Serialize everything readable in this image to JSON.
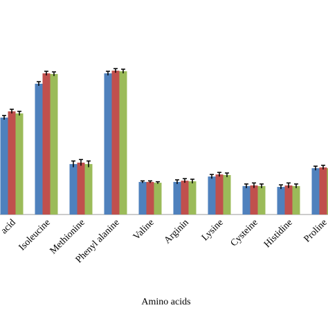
{
  "chart_data": {
    "type": "bar",
    "x_label": "Amino acids",
    "categories": [
      "acid",
      "Isoleucine",
      "Methionine",
      "Phenyl alanine",
      "Valine",
      "Arginin",
      "Lysine",
      "Cysteine",
      "Histidine",
      "Proline"
    ],
    "series": [
      {
        "color": "#4f81bd",
        "values": [
          46.7,
          63,
          24.3,
          68,
          15.7,
          15.7,
          18.3,
          13.7,
          13.3,
          22.3
        ],
        "errors": [
          1,
          1,
          1.5,
          1,
          0.5,
          1,
          1,
          1,
          1,
          1
        ]
      },
      {
        "color": "#c0504d",
        "values": [
          49.7,
          68,
          25,
          69.3,
          15.7,
          16.3,
          19.3,
          14,
          14,
          22.7
        ],
        "errors": [
          1,
          1,
          1.5,
          1,
          0.5,
          1,
          1,
          1.2,
          1.2,
          1
        ]
      },
      {
        "color": "#9bbb59",
        "values": [
          48.7,
          67.7,
          24.3,
          69,
          15.3,
          16,
          19,
          13.7,
          13.7,
          22.3
        ],
        "errors": [
          1,
          1,
          1.5,
          1,
          0.5,
          1,
          1,
          1,
          1,
          1
        ]
      }
    ],
    "ylim": [
      0,
      100
    ]
  }
}
